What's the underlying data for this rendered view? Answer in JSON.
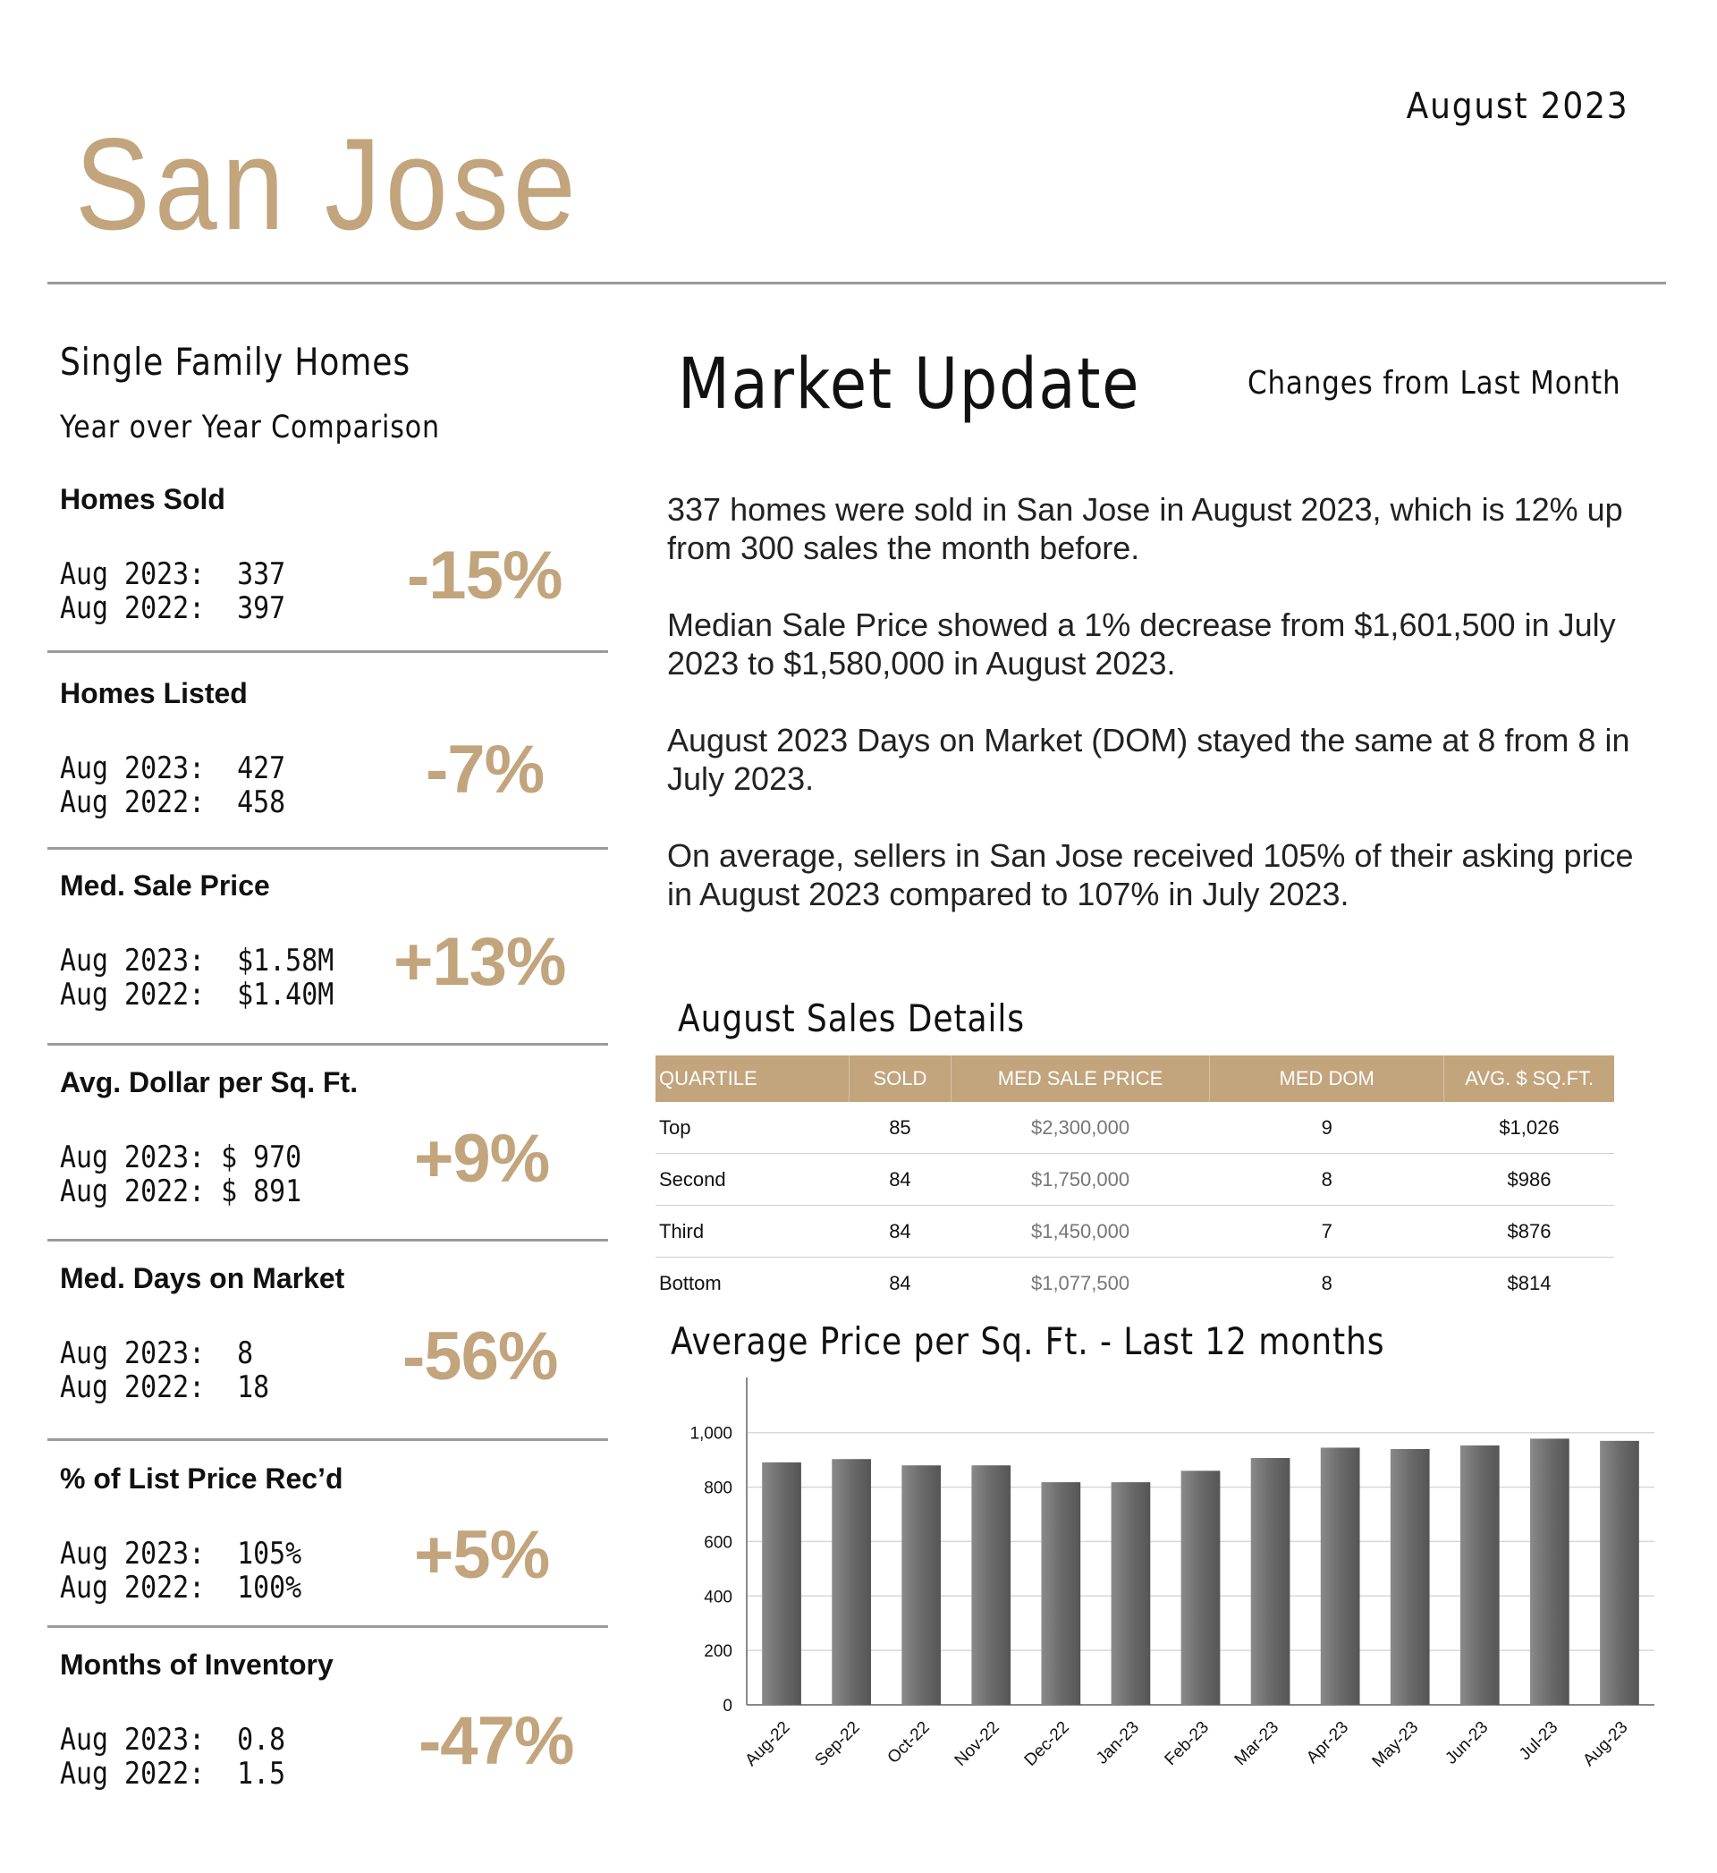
{
  "header": {
    "city": "San Jose",
    "date": "August 2023"
  },
  "left": {
    "subtitle": "Single Family Homes",
    "subtitle2": "Year over Year Comparison",
    "metrics": [
      {
        "label": "Homes Sold",
        "line1": "Aug 2023:  337",
        "line2": "Aug 2022:  397",
        "change": "-15%"
      },
      {
        "label": "Homes Listed",
        "line1": "Aug 2023:  427",
        "line2": "Aug 2022:  458",
        "change": "-7%"
      },
      {
        "label": "Med. Sale Price",
        "line1": "Aug 2023:  $1.58M",
        "line2": "Aug 2022:  $1.40M",
        "change": "+13%"
      },
      {
        "label": "Avg. Dollar per Sq. Ft.",
        "line1": "Aug 2023: $ 970",
        "line2": "Aug 2022: $ 891",
        "change": "+9%"
      },
      {
        "label": "Med. Days on Market",
        "line1": "Aug 2023:  8",
        "line2": "Aug 2022:  18",
        "change": "-56%"
      },
      {
        "label": "% of List Price Rec’d",
        "line1": "Aug 2023:  105%",
        "line2": "Aug 2022:  100%",
        "change": "+5%"
      },
      {
        "label": "Months of Inventory",
        "line1": "Aug 2023:  0.8",
        "line2": "Aug 2022:  1.5",
        "change": "-47%"
      }
    ]
  },
  "market": {
    "title": "Market Update",
    "changes_label": "Changes from Last Month",
    "paragraphs": [
      "337 homes were sold in San Jose in August 2023, which is 12% up from 300 sales the month before.",
      "Median Sale Price showed a 1% decrease from $1,601,500 in July 2023 to $1,580,000 in August 2023.",
      "August 2023 Days on Market (DOM) stayed the same at 8 from 8 in July 2023.",
      "On average, sellers in San Jose received 105% of their asking price in August 2023 compared to 107% in July 2023."
    ]
  },
  "details": {
    "title": "August Sales Details",
    "headers": [
      "QUARTILE",
      "SOLD",
      "MED SALE PRICE",
      "MED DOM",
      "AVG. $ SQ.FT."
    ],
    "rows": [
      [
        "Top",
        "85",
        "$2,300,000",
        "9",
        "$1,026"
      ],
      [
        "Second",
        "84",
        "$1,750,000",
        "8",
        "$986"
      ],
      [
        "Third",
        "84",
        "$1,450,000",
        "7",
        "$876"
      ],
      [
        "Bottom",
        "84",
        "$1,077,500",
        "8",
        "$814"
      ]
    ]
  },
  "chart_data": {
    "type": "bar",
    "title": "Average Price per Sq. Ft. - Last 12 months",
    "categories": [
      "Aug-22",
      "Sep-22",
      "Oct-22",
      "Nov-22",
      "Dec-22",
      "Jan-23",
      "Feb-23",
      "Mar-23",
      "Apr-23",
      "May-23",
      "Jun-23",
      "Jul-23",
      "Aug-23"
    ],
    "values": [
      891,
      903,
      880,
      880,
      818,
      818,
      860,
      907,
      945,
      940,
      953,
      978,
      970
    ],
    "yticks": [
      "0",
      "200",
      "400",
      "600",
      "800",
      "1,000"
    ],
    "ylim": [
      0,
      1170
    ],
    "grid": true,
    "bar_color": "#6b6b6b"
  }
}
